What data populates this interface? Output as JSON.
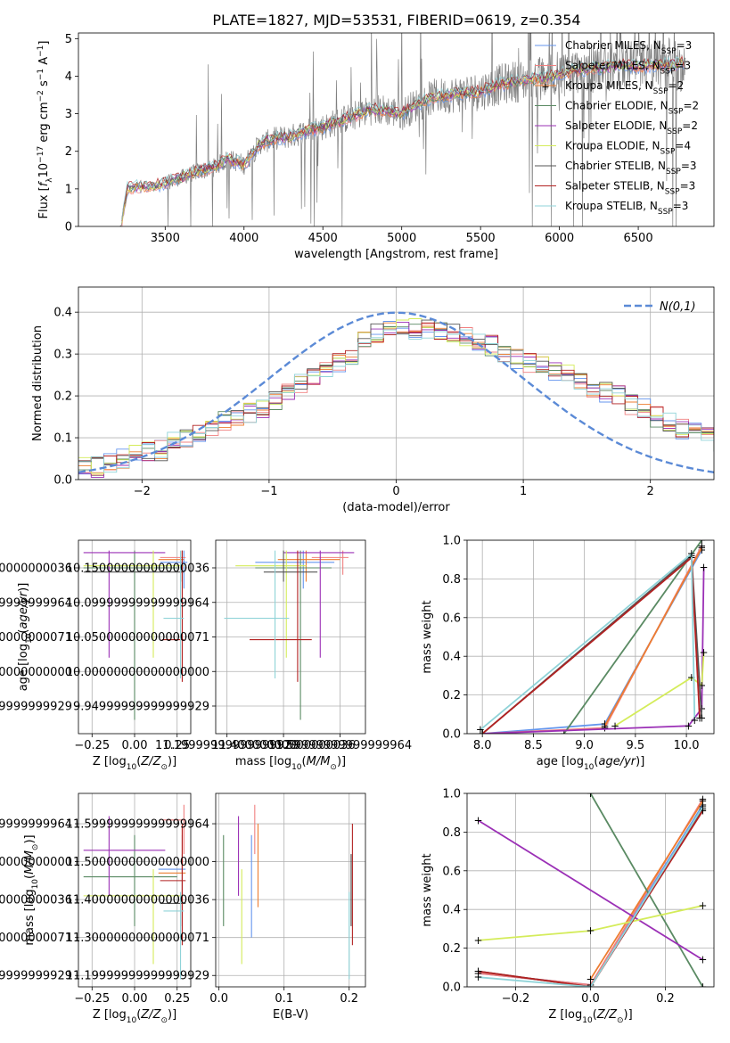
{
  "figure": {
    "title": "PLATE=1827, MJD=53531, FIBERID=0619, z=0.354"
  },
  "colors": {
    "Chabrier MILES": "#6495ed",
    "Salpeter MILES": "#f08080",
    "Kroupa MILES": "#ed7d31",
    "Chabrier ELODIE": "#5a8a63",
    "Salpeter ELODIE": "#9b30b6",
    "Kroupa ELODIE": "#d4ec5a",
    "Chabrier STELIB": "#555555",
    "Salpeter STELIB": "#b22222",
    "Kroupa STELIB": "#8fd3d8",
    "data": "#808080",
    "gaussian": "#5b8ad6"
  },
  "chart_data": [
    {
      "id": "spectrum",
      "type": "line",
      "xlabel": "wavelength [Angstrom, rest frame]",
      "ylabel": "Flux [f_λ10^-17 erg cm^-2 s^-1 A^-1]",
      "xlim": [
        2950,
        6980
      ],
      "ylim": [
        0,
        5.15
      ],
      "xticks": [
        3500,
        4000,
        4500,
        5000,
        5500,
        6000,
        6500
      ],
      "yticks": [
        0,
        1,
        2,
        3,
        4,
        5
      ],
      "legend": {
        "placement": "top-right",
        "entries": [
          {
            "model": "Chabrier MILES",
            "nssp": "3"
          },
          {
            "model": "Salpeter MILES",
            "nssp": "3"
          },
          {
            "model": "Kroupa MILES",
            "nssp": "2"
          },
          {
            "model": "Chabrier ELODIE",
            "nssp": "2"
          },
          {
            "model": "Salpeter ELODIE",
            "nssp": "2"
          },
          {
            "model": "Kroupa ELODIE",
            "nssp": "4"
          },
          {
            "model": "Chabrier STELIB",
            "nssp": "3"
          },
          {
            "model": "Salpeter STELIB",
            "nssp": "3"
          },
          {
            "model": "Kroupa STELIB",
            "nssp": "3"
          }
        ]
      },
      "model_continuum": {
        "x": [
          3220,
          3260,
          3300,
          3400,
          3500,
          3600,
          3700,
          3800,
          3900,
          4000,
          4100,
          4200,
          4300,
          4400,
          4500,
          4600,
          4700,
          4800,
          4900,
          5000,
          5100,
          5200,
          5300,
          5400,
          5500,
          5600,
          5700,
          5800,
          5900,
          6000,
          6100,
          6200,
          6300,
          6400,
          6500,
          6600,
          6700,
          6800
        ],
        "y": [
          0.0,
          1.0,
          1.05,
          1.05,
          1.15,
          1.3,
          1.45,
          1.55,
          1.8,
          1.65,
          2.2,
          2.35,
          2.4,
          2.55,
          2.65,
          2.8,
          2.95,
          3.1,
          3.1,
          3.0,
          3.25,
          3.45,
          3.5,
          3.55,
          3.6,
          3.75,
          3.85,
          3.9,
          3.95,
          4.05,
          4.15,
          4.2,
          4.25,
          4.3,
          4.25,
          4.3,
          4.3,
          4.35
        ]
      }
    },
    {
      "id": "residuals",
      "type": "line",
      "xlabel": "(data-model)/error",
      "ylabel": "Normed distribution",
      "xlim": [
        -2.5,
        2.5
      ],
      "ylim": [
        0,
        0.46
      ],
      "xticks": [
        -2,
        -1,
        0,
        1,
        2
      ],
      "yticks": [
        0.0,
        0.1,
        0.2,
        0.3,
        0.4
      ],
      "legend": {
        "placement": "top-right",
        "label": "N(0,1)"
      },
      "bin_width": 0.1,
      "bins_start": -2.5,
      "mean_histogram": [
        0.03,
        0.03,
        0.04,
        0.05,
        0.06,
        0.07,
        0.07,
        0.09,
        0.1,
        0.11,
        0.12,
        0.14,
        0.15,
        0.16,
        0.17,
        0.19,
        0.21,
        0.23,
        0.25,
        0.27,
        0.28,
        0.3,
        0.33,
        0.35,
        0.36,
        0.36,
        0.36,
        0.36,
        0.35,
        0.35,
        0.34,
        0.33,
        0.32,
        0.3,
        0.29,
        0.28,
        0.27,
        0.26,
        0.25,
        0.24,
        0.22,
        0.21,
        0.2,
        0.18,
        0.17,
        0.15,
        0.14,
        0.12,
        0.11,
        0.1,
        0.09,
        0.08,
        0.07,
        0.06,
        0.05,
        0.05
      ]
    },
    {
      "id": "age_vs_Z",
      "type": "scatter",
      "xlabel": "Z [log10(Z/Z⊙)]",
      "ylabel": "age  [log10(age/yr)]",
      "xlim": [
        -0.33,
        0.33
      ],
      "ylim": [
        9.91,
        10.19
      ],
      "xticks": [
        -0.25,
        0.0,
        0.25
      ],
      "yticks": [
        9.95,
        10.0,
        10.05,
        10.1,
        10.15
      ],
      "points": [
        {
          "model": "Chabrier MILES",
          "x": 0.29,
          "y": 10.158,
          "x_lo": 0.15,
          "x_hi": 0.31,
          "y_lo": 10.12,
          "y_hi": 10.175
        },
        {
          "model": "Salpeter MILES",
          "x": 0.28,
          "y": 10.165,
          "x_lo": 0.15,
          "x_hi": 0.3,
          "y_lo": 10.14,
          "y_hi": 10.175
        },
        {
          "model": "Kroupa MILES",
          "x": 0.28,
          "y": 10.162,
          "x_lo": 0.14,
          "x_hi": 0.29,
          "y_lo": 10.13,
          "y_hi": 10.175
        },
        {
          "model": "Chabrier ELODIE",
          "x": 0.0,
          "y": 10.15,
          "x_lo": -0.3,
          "x_hi": 0.25,
          "y_lo": 9.93,
          "y_hi": 10.175
        },
        {
          "model": "Salpeter ELODIE",
          "x": -0.15,
          "y": 10.172,
          "x_lo": -0.3,
          "x_hi": 0.18,
          "y_lo": 10.02,
          "y_hi": 10.175
        },
        {
          "model": "Kroupa ELODIE",
          "x": 0.11,
          "y": 10.153,
          "x_lo": -0.3,
          "x_hi": 0.29,
          "y_lo": 10.02,
          "y_hi": 10.175
        },
        {
          "model": "Chabrier STELIB",
          "x": 0.28,
          "y": 10.144,
          "x_lo": -0.3,
          "x_hi": 0.29,
          "y_lo": 10.13,
          "y_hi": 10.175
        },
        {
          "model": "Salpeter STELIB",
          "x": 0.28,
          "y": 10.046,
          "x_lo": 0.16,
          "x_hi": 0.29,
          "y_lo": 9.985,
          "y_hi": 10.175
        },
        {
          "model": "Kroupa STELIB",
          "x": 0.27,
          "y": 10.077,
          "x_lo": 0.17,
          "x_hi": 0.29,
          "y_lo": 9.99,
          "y_hi": 10.175
        }
      ]
    },
    {
      "id": "age_vs_mass",
      "type": "scatter",
      "xlabel": "mass [log10(M/M⊙)]",
      "ylabel": "",
      "xlim": [
        11.16,
        11.69
      ],
      "ylim": [
        9.91,
        10.19
      ],
      "xticks": [
        11.2,
        11.4,
        11.6
      ],
      "yticks": [
        9.95,
        10.0,
        10.05,
        10.1,
        10.15
      ],
      "points": [
        {
          "model": "Chabrier MILES",
          "x": 11.47,
          "y": 10.158,
          "x_lo": 11.3,
          "x_hi": 11.58,
          "y_lo": 10.12,
          "y_hi": 10.175
        },
        {
          "model": "Salpeter MILES",
          "x": 11.61,
          "y": 10.165,
          "x_lo": 11.5,
          "x_hi": 11.63,
          "y_lo": 10.14,
          "y_hi": 10.175
        },
        {
          "model": "Kroupa MILES",
          "x": 11.48,
          "y": 10.162,
          "x_lo": 11.38,
          "x_hi": 11.6,
          "y_lo": 10.13,
          "y_hi": 10.175
        },
        {
          "model": "Chabrier ELODIE",
          "x": 11.46,
          "y": 10.15,
          "x_lo": 11.3,
          "x_hi": 11.57,
          "y_lo": 9.93,
          "y_hi": 10.175
        },
        {
          "model": "Salpeter ELODIE",
          "x": 11.53,
          "y": 10.172,
          "x_lo": 11.4,
          "x_hi": 11.65,
          "y_lo": 10.02,
          "y_hi": 10.175
        },
        {
          "model": "Kroupa ELODIE",
          "x": 11.41,
          "y": 10.153,
          "x_lo": 11.23,
          "x_hi": 11.48,
          "y_lo": 10.02,
          "y_hi": 10.175
        },
        {
          "model": "Chabrier STELIB",
          "x": 11.4,
          "y": 10.144,
          "x_lo": 11.33,
          "x_hi": 11.52,
          "y_lo": 10.13,
          "y_hi": 10.175
        },
        {
          "model": "Salpeter STELIB",
          "x": 11.45,
          "y": 10.046,
          "x_lo": 11.28,
          "x_hi": 11.5,
          "y_lo": 9.985,
          "y_hi": 10.175
        },
        {
          "model": "Kroupa STELIB",
          "x": 11.37,
          "y": 10.077,
          "x_lo": 11.19,
          "x_hi": 11.42,
          "y_lo": 9.99,
          "y_hi": 10.175
        }
      ]
    },
    {
      "id": "weight_vs_age",
      "type": "line",
      "xlabel": "age  [log10(age/yr)]",
      "ylabel": "mass weight",
      "xlim": [
        7.85,
        10.27
      ],
      "ylim": [
        0,
        1.0
      ],
      "xticks": [
        8.0,
        8.5,
        9.0,
        9.5,
        10.0
      ],
      "yticks": [
        0.0,
        0.2,
        0.4,
        0.6,
        0.8,
        1.0
      ],
      "series": [
        {
          "model": "Chabrier MILES",
          "x": [
            8.0,
            9.2,
            10.15
          ],
          "y": [
            0.0,
            0.05,
            0.95
          ]
        },
        {
          "model": "Salpeter MILES",
          "x": [
            8.0,
            9.2,
            10.15
          ],
          "y": [
            0.0,
            0.03,
            0.97
          ]
        },
        {
          "model": "Kroupa MILES",
          "x": [
            9.2,
            10.15
          ],
          "y": [
            0.04,
            0.96
          ]
        },
        {
          "model": "Chabrier ELODIE",
          "x": [
            8.8,
            10.15
          ],
          "y": [
            0.0,
            1.0
          ]
        },
        {
          "model": "Salpeter ELODIE",
          "x": [
            8.0,
            10.02,
            10.15,
            10.17
          ],
          "y": [
            0.0,
            0.04,
            0.13,
            0.86
          ]
        },
        {
          "model": "Kroupa ELODIE",
          "x": [
            9.3,
            10.05,
            10.15,
            10.17
          ],
          "y": [
            0.04,
            0.29,
            0.25,
            0.42
          ]
        },
        {
          "model": "Chabrier STELIB",
          "x": [
            8.0,
            10.05,
            10.15
          ],
          "y": [
            0.0,
            0.92,
            0.08
          ]
        },
        {
          "model": "Salpeter STELIB",
          "x": [
            8.0,
            10.05,
            10.13
          ],
          "y": [
            0.0,
            0.91,
            0.08
          ]
        },
        {
          "model": "Kroupa STELIB",
          "x": [
            7.98,
            10.05,
            10.08
          ],
          "y": [
            0.02,
            0.93,
            0.07
          ]
        }
      ]
    },
    {
      "id": "mass_vs_Z",
      "type": "scatter",
      "xlabel": "Z [log10(Z/Z⊙)]",
      "ylabel": "mass [log10(M/M⊙)]",
      "xlim": [
        -0.33,
        0.33
      ],
      "ylim": [
        11.17,
        11.68
      ],
      "xticks": [
        -0.25,
        0.0,
        0.25
      ],
      "yticks": [
        11.2,
        11.3,
        11.4,
        11.5,
        11.6
      ],
      "points": [
        {
          "model": "Chabrier MILES",
          "x": 0.28,
          "y": 11.48,
          "x_lo": 0.14,
          "x_hi": 0.3,
          "y_lo": 11.3,
          "y_hi": 11.57
        },
        {
          "model": "Salpeter MILES",
          "x": 0.29,
          "y": 11.61,
          "x_lo": 0.16,
          "x_hi": 0.3,
          "y_lo": 11.52,
          "y_hi": 11.65
        },
        {
          "model": "Kroupa MILES",
          "x": 0.28,
          "y": 11.47,
          "x_lo": 0.14,
          "x_hi": 0.3,
          "y_lo": 11.38,
          "y_hi": 11.6
        },
        {
          "model": "Chabrier ELODIE",
          "x": 0.0,
          "y": 11.46,
          "x_lo": -0.3,
          "x_hi": 0.25,
          "y_lo": 11.33,
          "y_hi": 11.57
        },
        {
          "model": "Salpeter ELODIE",
          "x": -0.15,
          "y": 11.53,
          "x_lo": -0.3,
          "x_hi": 0.18,
          "y_lo": 11.41,
          "y_hi": 11.62
        },
        {
          "model": "Kroupa ELODIE",
          "x": 0.11,
          "y": 11.41,
          "x_lo": -0.3,
          "x_hi": 0.28,
          "y_lo": 11.23,
          "y_hi": 11.48
        },
        {
          "model": "Chabrier STELIB",
          "x": 0.28,
          "y": 11.39,
          "x_lo": 0.15,
          "x_hi": 0.3,
          "y_lo": 11.33,
          "y_hi": 11.52
        },
        {
          "model": "Salpeter STELIB",
          "x": 0.28,
          "y": 11.45,
          "x_lo": 0.15,
          "x_hi": 0.3,
          "y_lo": 11.28,
          "y_hi": 11.6
        },
        {
          "model": "Kroupa STELIB",
          "x": 0.27,
          "y": 11.37,
          "x_lo": 0.17,
          "x_hi": 0.29,
          "y_lo": 11.19,
          "y_hi": 11.42
        }
      ]
    },
    {
      "id": "mass_vs_ebv",
      "type": "scatter",
      "xlabel": "E(B-V)",
      "ylabel": "",
      "xlim": [
        -0.005,
        0.225
      ],
      "ylim": [
        11.17,
        11.68
      ],
      "xticks": [
        0.0,
        0.1,
        0.2
      ],
      "yticks": [
        11.2,
        11.3,
        11.4,
        11.5,
        11.6
      ],
      "points": [
        {
          "model": "Chabrier MILES",
          "x": 0.05,
          "y": 11.48,
          "y_lo": 11.3,
          "y_hi": 11.57
        },
        {
          "model": "Salpeter MILES",
          "x": 0.055,
          "y": 11.61,
          "y_lo": 11.52,
          "y_hi": 11.65
        },
        {
          "model": "Kroupa MILES",
          "x": 0.06,
          "y": 11.47,
          "y_lo": 11.38,
          "y_hi": 11.6
        },
        {
          "model": "Chabrier ELODIE",
          "x": 0.007,
          "y": 11.46,
          "y_lo": 11.33,
          "y_hi": 11.57
        },
        {
          "model": "Salpeter ELODIE",
          "x": 0.03,
          "y": 11.53,
          "y_lo": 11.41,
          "y_hi": 11.62
        },
        {
          "model": "Kroupa ELODIE",
          "x": 0.035,
          "y": 11.41,
          "y_lo": 11.23,
          "y_hi": 11.48
        },
        {
          "model": "Chabrier STELIB",
          "x": 0.203,
          "y": 11.39,
          "y_lo": 11.33,
          "y_hi": 11.52
        },
        {
          "model": "Salpeter STELIB",
          "x": 0.205,
          "y": 11.45,
          "y_lo": 11.28,
          "y_hi": 11.6
        },
        {
          "model": "Kroupa STELIB",
          "x": 0.2,
          "y": 11.37,
          "y_lo": 11.19,
          "y_hi": 11.42
        }
      ]
    },
    {
      "id": "weight_vs_Z",
      "type": "line",
      "xlabel": "Z [log10(Z/Z⊙)]",
      "ylabel": "mass weight",
      "xlim": [
        -0.33,
        0.33
      ],
      "ylim": [
        0,
        1.0
      ],
      "xticks": [
        -0.2,
        0.0,
        0.2
      ],
      "yticks": [
        0.0,
        0.2,
        0.4,
        0.6,
        0.8,
        1.0
      ],
      "series": [
        {
          "model": "Chabrier MILES",
          "x": [
            -0.3,
            0.0,
            0.3
          ],
          "y": [
            0.07,
            0.01,
            0.94
          ]
        },
        {
          "model": "Salpeter MILES",
          "x": [
            -0.3,
            0.0,
            0.3
          ],
          "y": [
            0.07,
            0.01,
            0.97
          ]
        },
        {
          "model": "Kroupa MILES",
          "x": [
            0.0,
            0.3
          ],
          "y": [
            0.04,
            0.96
          ]
        },
        {
          "model": "Chabrier ELODIE",
          "x": [
            0.0,
            0.3
          ],
          "y": [
            1.0,
            0.0
          ]
        },
        {
          "model": "Salpeter ELODIE",
          "x": [
            -0.3,
            0.3
          ],
          "y": [
            0.86,
            0.14
          ]
        },
        {
          "model": "Kroupa ELODIE",
          "x": [
            -0.3,
            0.0,
            0.3
          ],
          "y": [
            0.24,
            0.29,
            0.42
          ]
        },
        {
          "model": "Chabrier STELIB",
          "x": [
            -0.3,
            0.0,
            0.3
          ],
          "y": [
            0.08,
            0.0,
            0.92
          ]
        },
        {
          "model": "Salpeter STELIB",
          "x": [
            -0.3,
            0.0,
            0.3
          ],
          "y": [
            0.08,
            0.0,
            0.91
          ]
        },
        {
          "model": "Kroupa STELIB",
          "x": [
            -0.3,
            0.0,
            0.3
          ],
          "y": [
            0.05,
            0.0,
            0.93
          ]
        }
      ]
    }
  ]
}
